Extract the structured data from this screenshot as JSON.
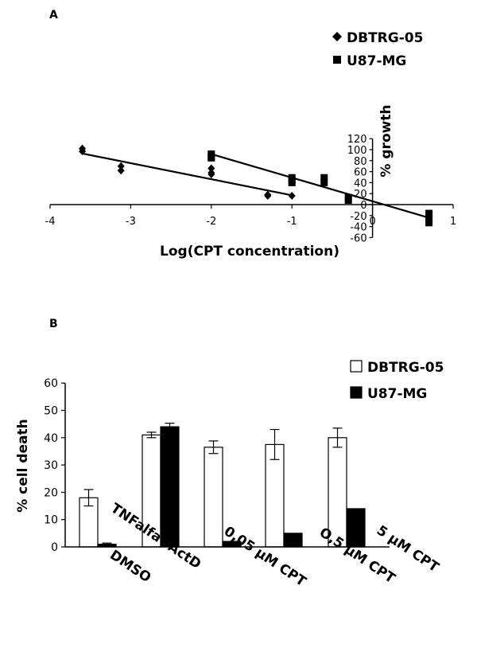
{
  "chart_data": [
    {
      "panel_label": "A",
      "type": "scatter",
      "xlabel": "Log(CPT concentration)",
      "ylabel": "% growth",
      "xlim": [
        -4,
        1
      ],
      "ylim": [
        -60,
        120
      ],
      "x_ticks": [
        "-4",
        "-3",
        "-2",
        "-1",
        "0",
        "1"
      ],
      "y_ticks": [
        "-60",
        "-40",
        "-20",
        "0",
        "20",
        "40",
        "60",
        "80",
        "100",
        "120"
      ],
      "legend_position": "top-right",
      "series": [
        {
          "name": "DBTRG-05",
          "marker": "diamond",
          "color": "#000000",
          "points": [
            [
              -3.6,
              102
            ],
            [
              -3.6,
              97
            ],
            [
              -3.12,
              70
            ],
            [
              -3.12,
              62
            ],
            [
              -2.0,
              66
            ],
            [
              -2.0,
              58
            ],
            [
              -2.0,
              55
            ],
            [
              -1.3,
              18
            ],
            [
              -1.3,
              16
            ],
            [
              -1.0,
              16
            ]
          ],
          "trendline": [
            [
              -3.6,
              93
            ],
            [
              -1.0,
              17
            ]
          ]
        },
        {
          "name": "U87-MG",
          "marker": "square",
          "color": "#000000",
          "points": [
            [
              -2.0,
              92
            ],
            [
              -2.0,
              88
            ],
            [
              -2.0,
              85
            ],
            [
              -1.0,
              49
            ],
            [
              -1.0,
              44
            ],
            [
              -1.0,
              40
            ],
            [
              -0.6,
              49
            ],
            [
              -0.6,
              40
            ],
            [
              -0.3,
              13
            ],
            [
              -0.3,
              8
            ],
            [
              0.7,
              -16
            ],
            [
              0,
              0
            ],
            [
              0.7,
              -25
            ],
            [
              0.7,
              -33
            ]
          ],
          "trendline": [
            [
              -2.0,
              92
            ],
            [
              0.7,
              -24
            ]
          ]
        }
      ]
    },
    {
      "panel_label": "B",
      "type": "bar",
      "ylabel": "% cell death",
      "ylim": [
        0,
        60
      ],
      "y_ticks": [
        "0",
        "10",
        "20",
        "30",
        "40",
        "50",
        "60"
      ],
      "categories": [
        "DMSO",
        "TNFalfa+ActD",
        "0,05 µM CPT",
        "O,5 µM CPT",
        "5 µM CPT"
      ],
      "legend_position": "top-right",
      "series": [
        {
          "name": "DBTRG-05",
          "fill": "#ffffff",
          "values": [
            18,
            41,
            36.5,
            37.5,
            40
          ],
          "errors": [
            3,
            1,
            2.3,
            5.5,
            3.5
          ]
        },
        {
          "name": "U87-MG",
          "fill": "#000000",
          "values": [
            1,
            44,
            2,
            5,
            14
          ],
          "errors": [
            0.4,
            1.3,
            0,
            0,
            0
          ]
        }
      ]
    }
  ]
}
